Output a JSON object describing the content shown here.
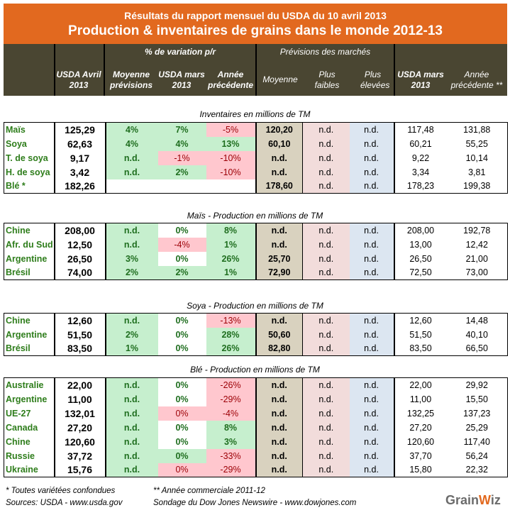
{
  "title": {
    "line1": "Résultats du rapport mensuel du USDA du 10 avril 2013",
    "line2": "Production & inventaires de grains dans le monde 2012-13"
  },
  "header": {
    "group_variation": "% de variation p/r",
    "group_previsions": "Prévisions des marchés",
    "usda_avril": "USDA Avril 2013",
    "moyenne_previsions": "Moyenne prévisions",
    "usda_mars": "USDA mars 2013",
    "annee_precedente": "Année précédente",
    "moyenne": "Moyenne",
    "plus_faibles": "Plus faibles",
    "plus_elevees": "Plus élevées",
    "usda_mars_2": "USDA mars 2013",
    "annee_precedente_2": "Année précédente **"
  },
  "colors": {
    "title_bg": "#e2691f",
    "header_bg": "#4a4632",
    "green_bg": "#c6efce",
    "red_bg": "#ffc7ce",
    "tan_bg": "#d9d2bf",
    "pink_bg": "#f2dcdb",
    "blue_bg": "#dce6f1"
  },
  "sections": [
    {
      "label": "Inventaires en millions de TM",
      "rows": [
        {
          "name": "Maïs",
          "usda": "125,29",
          "var": [
            [
              "4%",
              "g"
            ],
            [
              "7%",
              "g"
            ],
            [
              "-5%",
              "r"
            ]
          ],
          "moy": "120,20",
          "low": "n.d.",
          "high": "n.d.",
          "mars": "117,48",
          "prec": "131,88"
        },
        {
          "name": "Soya",
          "usda": "62,63",
          "var": [
            [
              "4%",
              "g"
            ],
            [
              "4%",
              "g"
            ],
            [
              "13%",
              "g"
            ]
          ],
          "moy": "60,10",
          "low": "n.d.",
          "high": "n.d.",
          "mars": "60,21",
          "prec": "55,25"
        },
        {
          "name": "T. de soya",
          "usda": "9,17",
          "var": [
            [
              "n.d.",
              "g"
            ],
            [
              "-1%",
              "r"
            ],
            [
              "-10%",
              "r"
            ]
          ],
          "moy": "n.d.",
          "low": "n.d.",
          "high": "n.d.",
          "mars": "9,22",
          "prec": "10,14"
        },
        {
          "name": "H. de soya",
          "usda": "3,42",
          "var": [
            [
              "n.d.",
              "g"
            ],
            [
              "2%",
              "g"
            ],
            [
              "-10%",
              "r"
            ]
          ],
          "moy": "n.d.",
          "low": "n.d.",
          "high": "n.d.",
          "mars": "3,34",
          "prec": "3,81"
        },
        {
          "name": "Blé *",
          "usda": "182,26",
          "var": [
            [
              "",
              "e"
            ],
            [
              "",
              "e"
            ],
            [
              "",
              "e"
            ]
          ],
          "moy": "178,60",
          "low": "n.d.",
          "high": "n.d.",
          "mars": "178,23",
          "prec": "199,38"
        }
      ]
    },
    {
      "label": "Maïs - Production en millions de TM",
      "rows": [
        {
          "name": "Chine",
          "usda": "208,00",
          "var": [
            [
              "n.d.",
              "g"
            ],
            [
              "0%",
              "w"
            ],
            [
              "8%",
              "g"
            ]
          ],
          "moy": "n.d.",
          "low": "n.d.",
          "high": "n.d.",
          "mars": "208,00",
          "prec": "192,78"
        },
        {
          "name": "Afr. du Sud",
          "usda": "12,50",
          "var": [
            [
              "n.d.",
              "g"
            ],
            [
              "-4%",
              "r"
            ],
            [
              "1%",
              "g"
            ]
          ],
          "moy": "n.d.",
          "low": "n.d.",
          "high": "n.d.",
          "mars": "13,00",
          "prec": "12,42"
        },
        {
          "name": "Argentine",
          "usda": "26,50",
          "var": [
            [
              "3%",
              "g"
            ],
            [
              "0%",
              "w"
            ],
            [
              "26%",
              "g"
            ]
          ],
          "moy": "25,70",
          "low": "n.d.",
          "high": "n.d.",
          "mars": "26,50",
          "prec": "21,00"
        },
        {
          "name": "Brésil",
          "usda": "74,00",
          "var": [
            [
              "2%",
              "g"
            ],
            [
              "2%",
              "g"
            ],
            [
              "1%",
              "g"
            ]
          ],
          "moy": "72,90",
          "low": "n.d.",
          "high": "n.d.",
          "mars": "72,50",
          "prec": "73,00"
        }
      ]
    },
    {
      "label": "Soya - Production en millions de TM",
      "rows": [
        {
          "name": "Chine",
          "usda": "12,60",
          "var": [
            [
              "n.d.",
              "g"
            ],
            [
              "0%",
              "w"
            ],
            [
              "-13%",
              "r"
            ]
          ],
          "moy": "n.d.",
          "low": "n.d.",
          "high": "n.d.",
          "mars": "12,60",
          "prec": "14,48"
        },
        {
          "name": "Argentine",
          "usda": "51,50",
          "var": [
            [
              "2%",
              "g"
            ],
            [
              "0%",
              "w"
            ],
            [
              "28%",
              "g"
            ]
          ],
          "moy": "50,60",
          "low": "n.d.",
          "high": "n.d.",
          "mars": "51,50",
          "prec": "40,10"
        },
        {
          "name": "Brésil",
          "usda": "83,50",
          "var": [
            [
              "1%",
              "g"
            ],
            [
              "0%",
              "w"
            ],
            [
              "26%",
              "g"
            ]
          ],
          "moy": "82,80",
          "low": "n.d.",
          "high": "n.d.",
          "mars": "83,50",
          "prec": "66,50"
        }
      ]
    },
    {
      "label": "Blé - Production en millions de TM",
      "rows": [
        {
          "name": "Australie",
          "usda": "22,00",
          "var": [
            [
              "n.d.",
              "g"
            ],
            [
              "0%",
              "w"
            ],
            [
              "-26%",
              "r"
            ]
          ],
          "moy": "n.d.",
          "low": "n.d.",
          "high": "n.d.",
          "mars": "22,00",
          "prec": "29,92"
        },
        {
          "name": "Argentine",
          "usda": "11,00",
          "var": [
            [
              "n.d.",
              "g"
            ],
            [
              "0%",
              "w"
            ],
            [
              "-29%",
              "r"
            ]
          ],
          "moy": "n.d.",
          "low": "n.d.",
          "high": "n.d.",
          "mars": "11,00",
          "prec": "15,50"
        },
        {
          "name": "UE-27",
          "usda": "132,01",
          "var": [
            [
              "n.d.",
              "g"
            ],
            [
              "0%",
              "r"
            ],
            [
              "-4%",
              "r"
            ]
          ],
          "moy": "n.d.",
          "low": "n.d.",
          "high": "n.d.",
          "mars": "132,25",
          "prec": "137,23"
        },
        {
          "name": "Canada",
          "usda": "27,20",
          "var": [
            [
              "n.d.",
              "g"
            ],
            [
              "0%",
              "w"
            ],
            [
              "8%",
              "g"
            ]
          ],
          "moy": "n.d.",
          "low": "n.d.",
          "high": "n.d.",
          "mars": "27,20",
          "prec": "25,29"
        },
        {
          "name": "Chine",
          "usda": "120,60",
          "var": [
            [
              "n.d.",
              "g"
            ],
            [
              "0%",
              "w"
            ],
            [
              "3%",
              "g"
            ]
          ],
          "moy": "n.d.",
          "low": "n.d.",
          "high": "n.d.",
          "mars": "120,60",
          "prec": "117,40"
        },
        {
          "name": "Russie",
          "usda": "37,72",
          "var": [
            [
              "n.d.",
              "g"
            ],
            [
              "0%",
              "g"
            ],
            [
              "-33%",
              "r"
            ]
          ],
          "moy": "n.d.",
          "low": "n.d.",
          "high": "n.d.",
          "mars": "37,70",
          "prec": "56,24"
        },
        {
          "name": "Ukraine",
          "usda": "15,76",
          "var": [
            [
              "n.d.",
              "g"
            ],
            [
              "0%",
              "r"
            ],
            [
              "-29%",
              "r"
            ]
          ],
          "moy": "n.d.",
          "low": "n.d.",
          "high": "n.d.",
          "mars": "15,80",
          "prec": "22,32"
        }
      ]
    }
  ],
  "footer": {
    "note1": "* Toutes variétées confondues",
    "note2": "** Année commerciale 2011-12",
    "sources": "Sources: USDA - www.usda.gov",
    "survey": "Sondage du Dow Jones Newswire  - www.dowjones.com",
    "logo": "GrainWiz"
  }
}
